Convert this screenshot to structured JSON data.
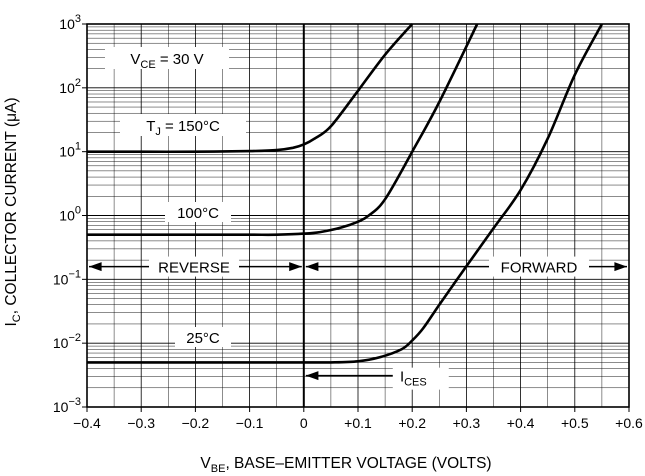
{
  "chart_data": {
    "type": "line",
    "title": "",
    "xlabel": {
      "main": "V",
      "sub": "BE",
      "rest": ", BASE–EMITTER VOLTAGE (VOLTS)"
    },
    "ylabel": {
      "main": "I",
      "sub": "C",
      "rest": ", COLLECTOR CURRENT (μA)"
    },
    "xlim": [
      -0.4,
      0.6
    ],
    "ylim_log10": [
      -3,
      3
    ],
    "y_scale": "log",
    "grid": true,
    "x_ticks": [
      {
        "value": -0.4,
        "label": "−0.4"
      },
      {
        "value": -0.3,
        "label": "−0.3"
      },
      {
        "value": -0.2,
        "label": "−0.2"
      },
      {
        "value": -0.1,
        "label": "−0.1"
      },
      {
        "value": 0,
        "label": "0"
      },
      {
        "value": 0.1,
        "label": "+0.1"
      },
      {
        "value": 0.2,
        "label": "+0.2"
      },
      {
        "value": 0.3,
        "label": "+0.3"
      },
      {
        "value": 0.4,
        "label": "+0.4"
      },
      {
        "value": 0.5,
        "label": "+0.5"
      },
      {
        "value": 0.6,
        "label": "+0.6"
      }
    ],
    "y_ticks": [
      {
        "exp": 3,
        "base": "10",
        "sup": "3"
      },
      {
        "exp": 2,
        "base": "10",
        "sup": "2"
      },
      {
        "exp": 1,
        "base": "10",
        "sup": "1"
      },
      {
        "exp": 0,
        "base": "10",
        "sup": "0"
      },
      {
        "exp": -1,
        "base": "10",
        "sup": "−1"
      },
      {
        "exp": -2,
        "base": "10",
        "sup": "−2"
      },
      {
        "exp": -3,
        "base": "10",
        "sup": "−3"
      }
    ],
    "series": [
      {
        "label": "150°C",
        "x": [
          -0.4,
          -0.3,
          -0.2,
          -0.1,
          -0.05,
          -0.02,
          0,
          0.02,
          0.05,
          0.1,
          0.15,
          0.2
        ],
        "y": [
          10,
          10,
          10,
          10.2,
          10.6,
          11.5,
          13,
          16,
          25,
          90,
          330,
          1000
        ]
      },
      {
        "label": "100°C",
        "x": [
          -0.4,
          -0.3,
          -0.2,
          -0.1,
          -0.05,
          0,
          0.03,
          0.07,
          0.1,
          0.12,
          0.15,
          0.2,
          0.25,
          0.32
        ],
        "y": [
          0.5,
          0.5,
          0.5,
          0.5,
          0.5,
          0.52,
          0.55,
          0.65,
          0.8,
          1.0,
          1.8,
          10,
          60,
          1000
        ]
      },
      {
        "label": "25°C",
        "x": [
          -0.4,
          -0.3,
          -0.2,
          -0.1,
          0,
          0.05,
          0.1,
          0.14,
          0.18,
          0.2,
          0.22,
          0.25,
          0.3,
          0.35,
          0.4,
          0.45,
          0.5,
          0.55
        ],
        "y": [
          0.005,
          0.005,
          0.005,
          0.005,
          0.005,
          0.005,
          0.0052,
          0.006,
          0.008,
          0.011,
          0.017,
          0.04,
          0.16,
          0.63,
          2.5,
          16,
          160,
          1000
        ]
      }
    ],
    "annotations": {
      "vce": {
        "pre": "V",
        "sub": "CE",
        "post": " = 30 V"
      },
      "tj": {
        "pre": "T",
        "sub": "J",
        "post": " = 150°C"
      },
      "t100": "100°C",
      "t25": "25°C",
      "reverse": "REVERSE",
      "forward": "FORWARD",
      "ices": {
        "pre": "I",
        "sub": "CES"
      }
    }
  }
}
